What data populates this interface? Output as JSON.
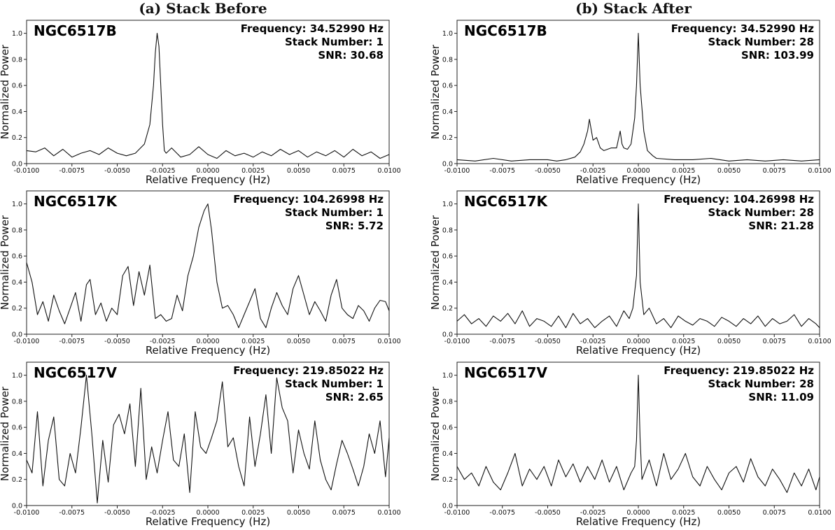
{
  "figure": {
    "left_title": "(a) Stack Before",
    "right_title": "(b) Stack After"
  },
  "chart_data": [
    {
      "type": "line",
      "column": "before",
      "row": 0,
      "source": "NGC6517B",
      "info": [
        "Frequency: 34.52990 Hz",
        "Stack Number: 1",
        "SNR: 30.68"
      ],
      "xlabel": "Relative Frequency (Hz)",
      "ylabel": "Normalized Power",
      "xlim": [
        -0.01,
        0.01
      ],
      "ylim": [
        0,
        1.1
      ],
      "xticks": [
        "-0.0100",
        "-0.0075",
        "-0.0050",
        "-0.0025",
        "0.0000",
        "0.0025",
        "0.0050",
        "0.0075",
        "0.0100"
      ],
      "yticks": [
        "0.0",
        "0.2",
        "0.4",
        "0.6",
        "0.8",
        "1.0"
      ],
      "x": [
        -0.01,
        -0.0095,
        -0.009,
        -0.0085,
        -0.008,
        -0.0075,
        -0.007,
        -0.0065,
        -0.006,
        -0.0055,
        -0.005,
        -0.0045,
        -0.004,
        -0.0035,
        -0.0032,
        -0.003,
        -0.0029,
        -0.0028,
        -0.0027,
        -0.0026,
        -0.0025,
        -0.0024,
        -0.0023,
        -0.002,
        -0.0015,
        -0.001,
        -0.0005,
        0.0,
        0.0005,
        0.001,
        0.0015,
        0.002,
        0.0025,
        0.003,
        0.0035,
        0.004,
        0.0045,
        0.005,
        0.0055,
        0.006,
        0.0065,
        0.007,
        0.0075,
        0.008,
        0.0085,
        0.009,
        0.0095,
        0.01
      ],
      "y": [
        0.1,
        0.09,
        0.12,
        0.06,
        0.11,
        0.05,
        0.08,
        0.1,
        0.07,
        0.12,
        0.08,
        0.06,
        0.08,
        0.15,
        0.3,
        0.6,
        0.85,
        1.0,
        0.9,
        0.6,
        0.3,
        0.1,
        0.08,
        0.12,
        0.05,
        0.07,
        0.13,
        0.07,
        0.04,
        0.1,
        0.06,
        0.08,
        0.05,
        0.09,
        0.06,
        0.11,
        0.07,
        0.1,
        0.05,
        0.09,
        0.06,
        0.1,
        0.05,
        0.11,
        0.06,
        0.09,
        0.04,
        0.07
      ]
    },
    {
      "type": "line",
      "column": "after",
      "row": 0,
      "source": "NGC6517B",
      "info": [
        "Frequency: 34.52990 Hz",
        "Stack Number: 28",
        "SNR: 103.99"
      ],
      "xlabel": "Relative Frequency (Hz)",
      "ylabel": "Normalized Power",
      "xlim": [
        -0.01,
        0.01
      ],
      "ylim": [
        0,
        1.1
      ],
      "xticks": [
        "-0.0100",
        "-0.0075",
        "-0.0050",
        "-0.0025",
        "0.0000",
        "0.0025",
        "0.0050",
        "0.0075",
        "0.0100"
      ],
      "yticks": [
        "0.0",
        "0.2",
        "0.4",
        "0.6",
        "0.8",
        "1.0"
      ],
      "x": [
        -0.01,
        -0.009,
        -0.008,
        -0.007,
        -0.006,
        -0.005,
        -0.0045,
        -0.004,
        -0.0035,
        -0.0032,
        -0.003,
        -0.0028,
        -0.0027,
        -0.0025,
        -0.0023,
        -0.0021,
        -0.0019,
        -0.0017,
        -0.0015,
        -0.0012,
        -0.001,
        -0.0009,
        -0.0008,
        -0.0006,
        -0.0004,
        -0.0002,
        -0.0001,
        0.0,
        0.0001,
        0.0003,
        0.0005,
        0.0008,
        0.001,
        0.002,
        0.003,
        0.004,
        0.005,
        0.006,
        0.007,
        0.008,
        0.009,
        0.01
      ],
      "y": [
        0.03,
        0.02,
        0.04,
        0.02,
        0.03,
        0.03,
        0.02,
        0.03,
        0.05,
        0.09,
        0.15,
        0.25,
        0.34,
        0.18,
        0.2,
        0.12,
        0.1,
        0.11,
        0.12,
        0.12,
        0.25,
        0.15,
        0.12,
        0.11,
        0.15,
        0.35,
        0.6,
        1.0,
        0.6,
        0.25,
        0.1,
        0.06,
        0.04,
        0.03,
        0.03,
        0.04,
        0.02,
        0.03,
        0.02,
        0.03,
        0.02,
        0.03
      ]
    },
    {
      "type": "line",
      "column": "before",
      "row": 1,
      "source": "NGC6517K",
      "info": [
        "Frequency: 104.26998 Hz",
        "Stack Number: 1",
        "SNR: 5.72"
      ],
      "xlabel": "Relative Frequency (Hz)",
      "ylabel": "Normalized Power",
      "xlim": [
        -0.01,
        0.01
      ],
      "ylim": [
        0,
        1.1
      ],
      "xticks": [
        "-0.0100",
        "-0.0075",
        "-0.0050",
        "-0.0025",
        "0.0000",
        "0.0025",
        "0.0050",
        "0.0075",
        "0.0100"
      ],
      "yticks": [
        "0.0",
        "0.2",
        "0.4",
        "0.6",
        "0.8",
        "1.0"
      ],
      "x": [
        -0.01,
        -0.0097,
        -0.0094,
        -0.0091,
        -0.0088,
        -0.0085,
        -0.0082,
        -0.0079,
        -0.0076,
        -0.0073,
        -0.007,
        -0.0067,
        -0.0065,
        -0.0062,
        -0.0059,
        -0.0056,
        -0.0053,
        -0.005,
        -0.0047,
        -0.0044,
        -0.0041,
        -0.0038,
        -0.0035,
        -0.0032,
        -0.0029,
        -0.0026,
        -0.0023,
        -0.002,
        -0.0017,
        -0.0014,
        -0.0011,
        -0.0008,
        -0.0005,
        -0.0002,
        0.0,
        0.0002,
        0.0005,
        0.0008,
        0.0011,
        0.0014,
        0.0017,
        0.002,
        0.0023,
        0.0026,
        0.0029,
        0.0032,
        0.0035,
        0.0038,
        0.0041,
        0.0044,
        0.0047,
        0.005,
        0.0053,
        0.0056,
        0.0059,
        0.0062,
        0.0065,
        0.0068,
        0.0071,
        0.0074,
        0.0077,
        0.008,
        0.0083,
        0.0086,
        0.0089,
        0.0092,
        0.0095,
        0.0098,
        0.01
      ],
      "y": [
        0.55,
        0.4,
        0.15,
        0.25,
        0.1,
        0.3,
        0.18,
        0.08,
        0.2,
        0.32,
        0.1,
        0.38,
        0.42,
        0.15,
        0.24,
        0.1,
        0.2,
        0.15,
        0.45,
        0.52,
        0.22,
        0.48,
        0.3,
        0.53,
        0.12,
        0.15,
        0.1,
        0.12,
        0.3,
        0.18,
        0.45,
        0.6,
        0.82,
        0.95,
        1.0,
        0.8,
        0.4,
        0.2,
        0.22,
        0.15,
        0.05,
        0.15,
        0.25,
        0.35,
        0.12,
        0.05,
        0.2,
        0.32,
        0.22,
        0.15,
        0.35,
        0.45,
        0.3,
        0.15,
        0.25,
        0.18,
        0.1,
        0.3,
        0.42,
        0.2,
        0.15,
        0.12,
        0.22,
        0.18,
        0.1,
        0.2,
        0.26,
        0.25,
        0.18
      ]
    },
    {
      "type": "line",
      "column": "after",
      "row": 1,
      "source": "NGC6517K",
      "info": [
        "Frequency: 104.26998 Hz",
        "Stack Number: 28",
        "SNR: 21.28"
      ],
      "xlabel": "Relative Frequency (Hz)",
      "ylabel": "Normalized Power",
      "xlim": [
        -0.01,
        0.01
      ],
      "ylim": [
        0,
        1.1
      ],
      "xticks": [
        "-0.0100",
        "-0.0075",
        "-0.0050",
        "-0.0025",
        "0.0000",
        "0.0025",
        "0.0050",
        "0.0075",
        "0.0100"
      ],
      "yticks": [
        "0.0",
        "0.2",
        "0.4",
        "0.6",
        "0.8",
        "1.0"
      ],
      "x": [
        -0.01,
        -0.0096,
        -0.0092,
        -0.0088,
        -0.0084,
        -0.008,
        -0.0076,
        -0.0072,
        -0.0068,
        -0.0064,
        -0.006,
        -0.0056,
        -0.0052,
        -0.0048,
        -0.0044,
        -0.004,
        -0.0036,
        -0.0032,
        -0.0028,
        -0.0024,
        -0.002,
        -0.0016,
        -0.0012,
        -0.0008,
        -0.0005,
        -0.0003,
        -0.0001,
        0.0,
        0.0001,
        0.0003,
        0.0006,
        0.001,
        0.0014,
        0.0018,
        0.0022,
        0.0026,
        0.003,
        0.0034,
        0.0038,
        0.0042,
        0.0046,
        0.005,
        0.0054,
        0.0058,
        0.0062,
        0.0066,
        0.007,
        0.0074,
        0.0078,
        0.0082,
        0.0086,
        0.009,
        0.0094,
        0.0098,
        0.01
      ],
      "y": [
        0.1,
        0.15,
        0.08,
        0.12,
        0.06,
        0.14,
        0.1,
        0.16,
        0.08,
        0.18,
        0.06,
        0.12,
        0.1,
        0.06,
        0.14,
        0.05,
        0.16,
        0.08,
        0.12,
        0.05,
        0.1,
        0.14,
        0.06,
        0.18,
        0.12,
        0.2,
        0.45,
        1.0,
        0.4,
        0.15,
        0.2,
        0.08,
        0.12,
        0.05,
        0.14,
        0.1,
        0.07,
        0.12,
        0.1,
        0.06,
        0.13,
        0.1,
        0.06,
        0.12,
        0.08,
        0.14,
        0.06,
        0.12,
        0.08,
        0.1,
        0.15,
        0.06,
        0.12,
        0.08,
        0.05
      ]
    },
    {
      "type": "line",
      "column": "before",
      "row": 2,
      "source": "NGC6517V",
      "info": [
        "Frequency: 219.85022 Hz",
        "Stack Number: 1",
        "SNR: 2.65"
      ],
      "xlabel": "Relative Frequency (Hz)",
      "ylabel": "Normalized Power",
      "xlim": [
        -0.01,
        0.01
      ],
      "ylim": [
        0,
        1.1
      ],
      "xticks": [
        "-0.0100",
        "-0.0075",
        "-0.0050",
        "-0.0025",
        "0.0000",
        "0.0025",
        "0.0050",
        "0.0075",
        "0.0100"
      ],
      "yticks": [
        "0.0",
        "0.2",
        "0.4",
        "0.6",
        "0.8",
        "1.0"
      ],
      "x": [
        -0.01,
        -0.0097,
        -0.0094,
        -0.0091,
        -0.0088,
        -0.0085,
        -0.0082,
        -0.0079,
        -0.0076,
        -0.0073,
        -0.007,
        -0.0067,
        -0.0064,
        -0.0061,
        -0.0058,
        -0.0055,
        -0.0052,
        -0.0049,
        -0.0046,
        -0.0043,
        -0.004,
        -0.0037,
        -0.0034,
        -0.0031,
        -0.0028,
        -0.0025,
        -0.0022,
        -0.0019,
        -0.0016,
        -0.0013,
        -0.001,
        -0.0007,
        -0.0004,
        -0.0001,
        0.0002,
        0.0005,
        0.0008,
        0.0011,
        0.0014,
        0.0017,
        0.002,
        0.0023,
        0.0026,
        0.0029,
        0.0032,
        0.0035,
        0.0038,
        0.0041,
        0.0044,
        0.0047,
        0.005,
        0.0053,
        0.0056,
        0.0059,
        0.0062,
        0.0065,
        0.0068,
        0.0071,
        0.0074,
        0.0077,
        0.008,
        0.0083,
        0.0086,
        0.0089,
        0.0092,
        0.0095,
        0.0098,
        0.01
      ],
      "y": [
        0.35,
        0.25,
        0.72,
        0.15,
        0.5,
        0.68,
        0.2,
        0.15,
        0.4,
        0.25,
        0.6,
        1.0,
        0.55,
        0.02,
        0.5,
        0.18,
        0.62,
        0.7,
        0.55,
        0.78,
        0.3,
        0.9,
        0.2,
        0.45,
        0.25,
        0.5,
        0.72,
        0.35,
        0.3,
        0.55,
        0.1,
        0.72,
        0.45,
        0.4,
        0.52,
        0.65,
        0.95,
        0.45,
        0.52,
        0.3,
        0.15,
        0.68,
        0.3,
        0.55,
        0.85,
        0.4,
        0.98,
        0.75,
        0.65,
        0.25,
        0.58,
        0.4,
        0.28,
        0.65,
        0.35,
        0.2,
        0.12,
        0.32,
        0.5,
        0.4,
        0.28,
        0.15,
        0.3,
        0.55,
        0.4,
        0.65,
        0.22,
        0.52
      ]
    },
    {
      "type": "line",
      "column": "after",
      "row": 2,
      "source": "NGC6517V",
      "info": [
        "Frequency: 219.85022 Hz",
        "Stack Number: 28",
        "SNR: 11.09"
      ],
      "xlabel": "Relative Frequency (Hz)",
      "ylabel": "Normalized Power",
      "xlim": [
        -0.01,
        0.01
      ],
      "ylim": [
        0,
        1.1
      ],
      "xticks": [
        "-0.0100",
        "-0.0075",
        "-0.0050",
        "-0.0025",
        "0.0000",
        "0.0025",
        "0.0050",
        "0.0075",
        "0.0100"
      ],
      "yticks": [
        "0.0",
        "0.2",
        "0.4",
        "0.6",
        "0.8",
        "1.0"
      ],
      "x": [
        -0.01,
        -0.0096,
        -0.0092,
        -0.0088,
        -0.0084,
        -0.008,
        -0.0076,
        -0.0072,
        -0.0068,
        -0.0064,
        -0.006,
        -0.0056,
        -0.0052,
        -0.0048,
        -0.0044,
        -0.004,
        -0.0036,
        -0.0032,
        -0.0028,
        -0.0024,
        -0.002,
        -0.0016,
        -0.0012,
        -0.0008,
        -0.0004,
        -0.0002,
        -0.0001,
        0.0,
        0.0001,
        0.0002,
        0.0006,
        0.001,
        0.0014,
        0.0018,
        0.0022,
        0.0026,
        0.003,
        0.0034,
        0.0038,
        0.0042,
        0.0046,
        0.005,
        0.0054,
        0.0058,
        0.0062,
        0.0066,
        0.007,
        0.0074,
        0.0078,
        0.0082,
        0.0086,
        0.009,
        0.0094,
        0.0098,
        0.01
      ],
      "y": [
        0.3,
        0.2,
        0.25,
        0.15,
        0.3,
        0.18,
        0.12,
        0.25,
        0.4,
        0.15,
        0.28,
        0.2,
        0.3,
        0.15,
        0.35,
        0.22,
        0.32,
        0.18,
        0.3,
        0.2,
        0.35,
        0.18,
        0.3,
        0.12,
        0.25,
        0.3,
        0.5,
        1.0,
        0.5,
        0.2,
        0.35,
        0.15,
        0.4,
        0.2,
        0.28,
        0.4,
        0.22,
        0.15,
        0.3,
        0.2,
        0.12,
        0.25,
        0.3,
        0.18,
        0.36,
        0.22,
        0.15,
        0.28,
        0.2,
        0.1,
        0.25,
        0.15,
        0.28,
        0.12,
        0.22
      ]
    }
  ]
}
